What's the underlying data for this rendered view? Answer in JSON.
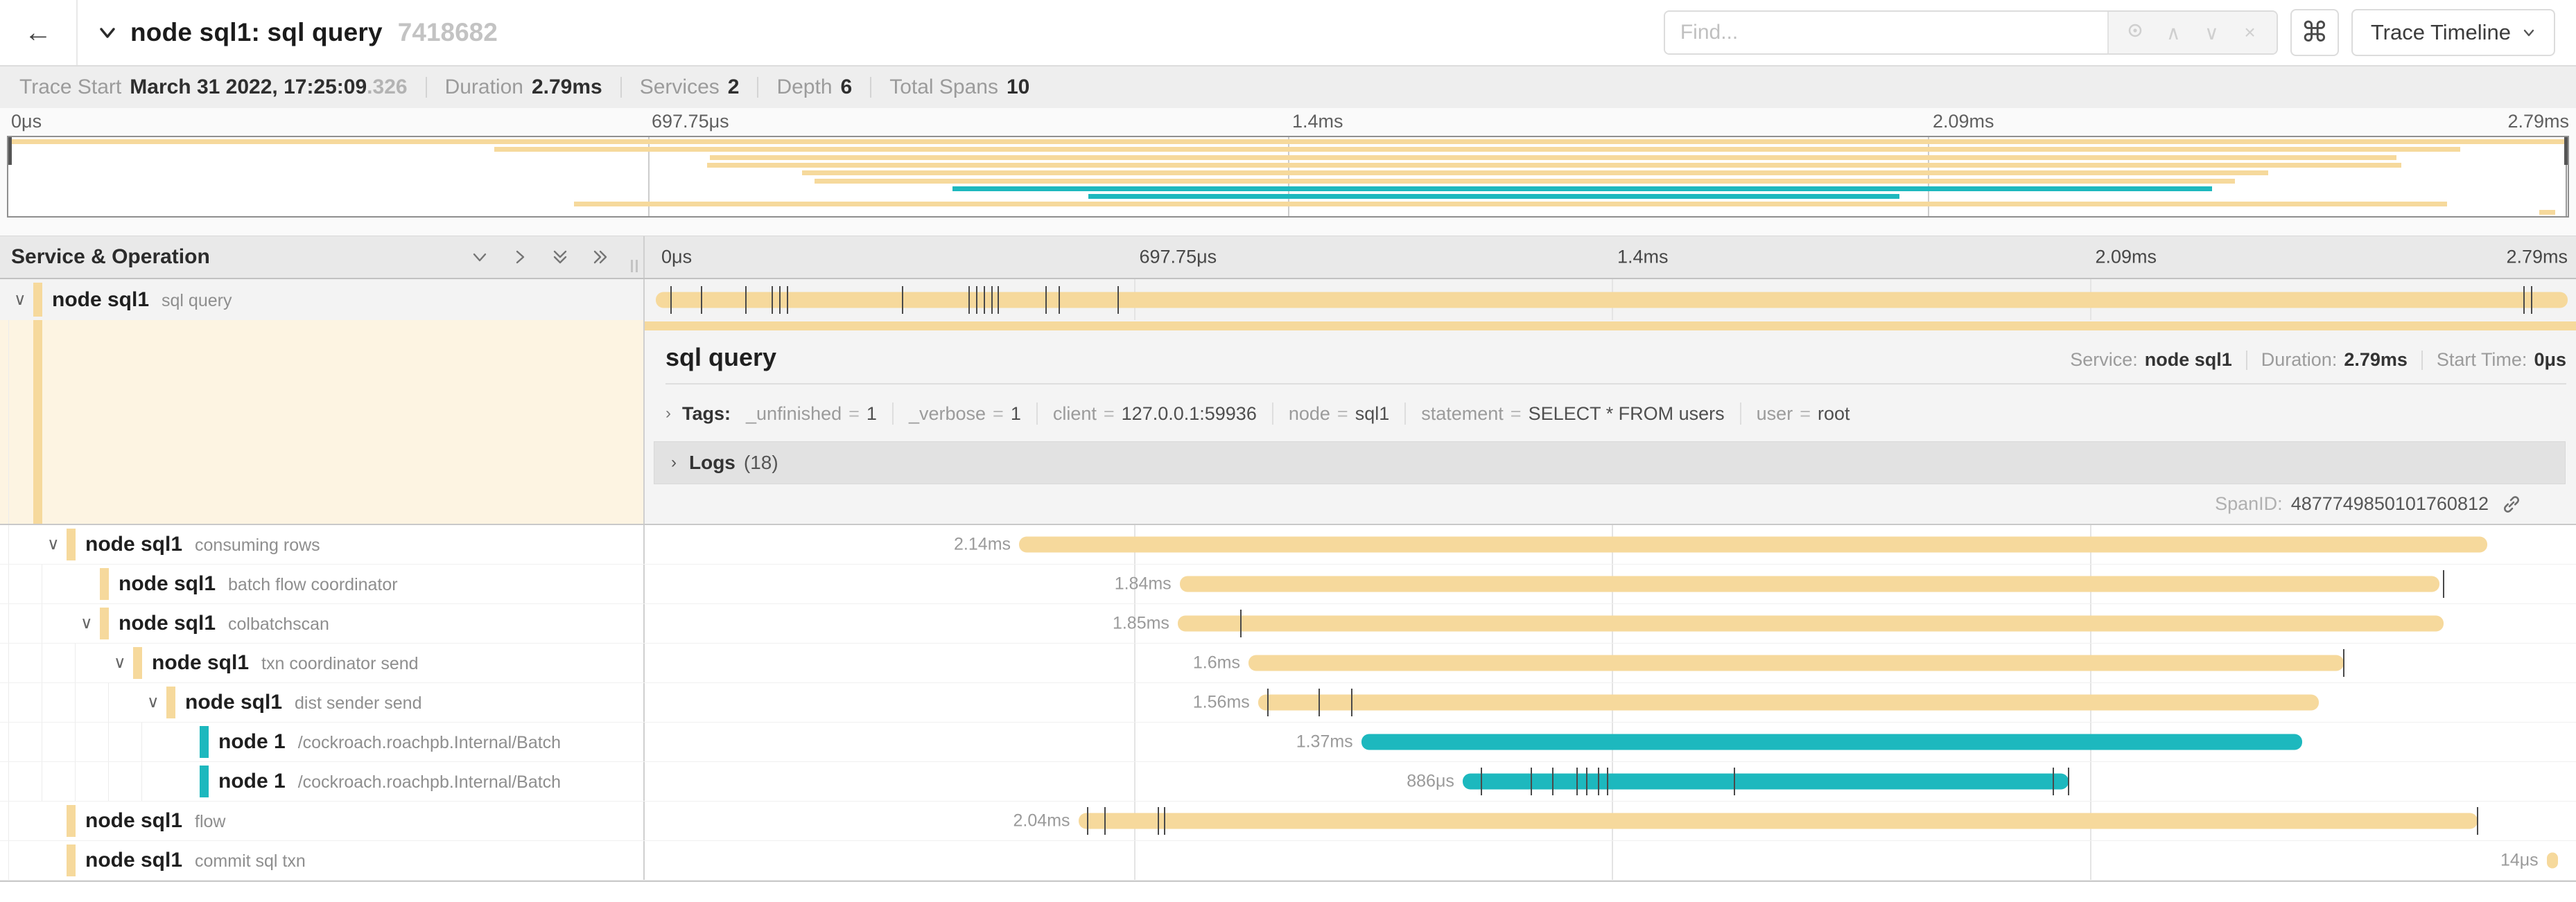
{
  "colors": {
    "tan": "#f6d99c",
    "teal": "#1db8be",
    "cream": "#fdf4e2"
  },
  "header": {
    "back_glyph": "←",
    "title": "node sql1: sql query",
    "trace_id": "7418682",
    "find_placeholder": "Find...",
    "find_icons": [
      "locate-icon",
      "chevron-up-icon",
      "chevron-down-icon",
      "clear-icon"
    ],
    "find_prev_glyph": "∧",
    "find_next_glyph": "∨",
    "find_clear_glyph": "×",
    "shortcut_glyph": "⌘",
    "view_label": "Trace Timeline"
  },
  "summary": [
    {
      "label": "Trace Start",
      "value": "March 31 2022, 17:25:09",
      "suffix": ".326"
    },
    {
      "label": "Duration",
      "value": "2.79ms"
    },
    {
      "label": "Services",
      "value": "2"
    },
    {
      "label": "Depth",
      "value": "6"
    },
    {
      "label": "Total Spans",
      "value": "10"
    }
  ],
  "axis": {
    "ticks": [
      "0μs",
      "697.75μs",
      "1.4ms",
      "2.09ms",
      "2.79ms"
    ]
  },
  "grid_header": {
    "title": "Service & Operation",
    "icons": [
      "collapse-one-icon",
      "expand-one-icon",
      "collapse-all-icon",
      "expand-all-icon"
    ]
  },
  "spans": [
    {
      "svc": "node sql1",
      "op": "sql query",
      "color": "tan",
      "depth": 0,
      "kids": true,
      "expanded": true,
      "start": 0,
      "end": 100,
      "dur": "",
      "ticks": [
        0.8,
        2.4,
        4.7,
        6.1,
        6.5,
        6.9,
        12.9,
        16.4,
        16.8,
        17.2,
        17.6,
        17.9,
        20.4,
        21.1,
        24.2,
        97.7,
        98.1
      ]
    },
    {
      "svc": "node sql1",
      "op": "consuming rows",
      "color": "tan",
      "depth": 1,
      "kids": true,
      "start": 19.0,
      "end": 95.8,
      "dur": "2.14ms",
      "ticks": []
    },
    {
      "svc": "node sql1",
      "op": "batch flow coordinator",
      "color": "tan",
      "depth": 2,
      "kids": false,
      "start": 27.4,
      "end": 93.3,
      "dur": "1.84ms",
      "ticks": [
        93.5
      ]
    },
    {
      "svc": "node sql1",
      "op": "colbatchscan",
      "color": "tan",
      "depth": 2,
      "kids": true,
      "start": 27.3,
      "end": 93.5,
      "dur": "1.85ms",
      "ticks": [
        30.6
      ]
    },
    {
      "svc": "node sql1",
      "op": "txn coordinator send",
      "color": "tan",
      "depth": 3,
      "kids": true,
      "start": 31.0,
      "end": 88.3,
      "dur": "1.6ms",
      "ticks": [
        88.3
      ]
    },
    {
      "svc": "node sql1",
      "op": "dist sender send",
      "color": "tan",
      "depth": 4,
      "kids": true,
      "start": 31.5,
      "end": 87.0,
      "dur": "1.56ms",
      "ticks": [
        32.0,
        34.7,
        36.4
      ]
    },
    {
      "svc": "node 1",
      "op": "/cockroach.roachpb.Internal/Batch",
      "color": "teal",
      "depth": 5,
      "kids": false,
      "start": 36.9,
      "end": 86.1,
      "dur": "1.37ms",
      "ticks": []
    },
    {
      "svc": "node 1",
      "op": "/cockroach.roachpb.Internal/Batch",
      "color": "teal",
      "depth": 5,
      "kids": false,
      "start": 42.2,
      "end": 73.9,
      "dur": "886μs",
      "ticks": [
        43.2,
        45.8,
        46.9,
        48.2,
        48.7,
        49.3,
        49.8,
        56.4,
        73.1,
        73.9
      ]
    },
    {
      "svc": "node sql1",
      "op": "flow",
      "color": "tan",
      "depth": 1,
      "kids": false,
      "start": 22.1,
      "end": 95.3,
      "dur": "2.04ms",
      "ticks": [
        22.6,
        23.5,
        26.3,
        26.6,
        95.3
      ]
    },
    {
      "svc": "node sql1",
      "op": "commit sql txn",
      "color": "tan",
      "depth": 1,
      "kids": false,
      "start": 98.9,
      "end": 99.5,
      "dur": "14μs",
      "ticks": []
    }
  ],
  "detail": {
    "title": "sql query",
    "meta": {
      "service_label": "Service:",
      "service": "node sql1",
      "duration_label": "Duration:",
      "duration": "2.79ms",
      "start_label": "Start Time:",
      "start": "0μs"
    },
    "tags_label": "Tags:",
    "tags": [
      {
        "k": "_unfinished",
        "v": "1"
      },
      {
        "k": "_verbose",
        "v": "1"
      },
      {
        "k": "client",
        "v": "127.0.0.1:59936"
      },
      {
        "k": "node",
        "v": "sql1"
      },
      {
        "k": "statement",
        "v": "SELECT * FROM users"
      },
      {
        "k": "user",
        "v": "root"
      }
    ],
    "logs_label": "Logs",
    "logs_count": "(18)",
    "span_id_label": "SpanID:",
    "span_id": "4877749850101760812"
  }
}
